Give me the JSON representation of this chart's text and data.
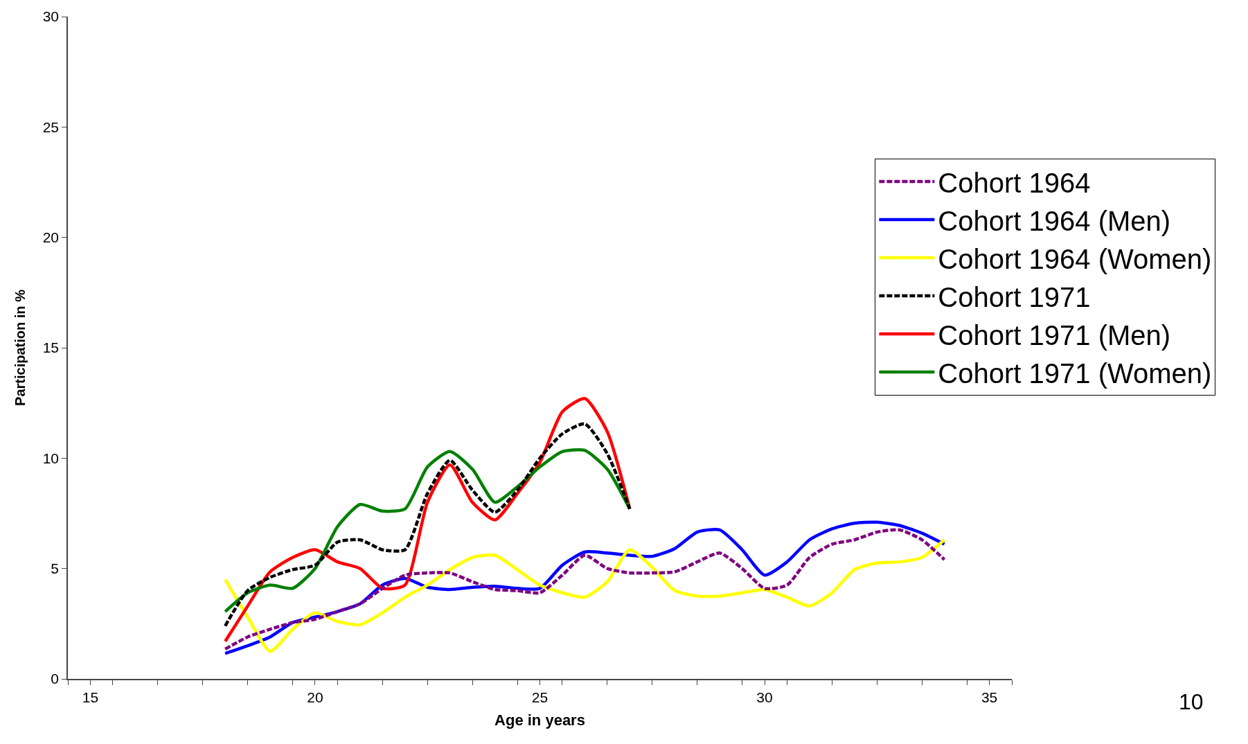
{
  "chart_data": {
    "type": "line",
    "xlabel": "Age in years",
    "ylabel": "Participation in %",
    "x": [
      18,
      18.5,
      19,
      19.5,
      20,
      20.5,
      21,
      21.5,
      22,
      22.5,
      23,
      23.5,
      24,
      24.5,
      25,
      25.5,
      26,
      26.5,
      27,
      27.5,
      28,
      28.5,
      29,
      29.5,
      30,
      30.5,
      31,
      31.5,
      32,
      32.5,
      33,
      33.5,
      34
    ],
    "series": [
      {
        "name": "Cohort 1964",
        "color": "#800080",
        "line_style": "dashed",
        "values": [
          1.35,
          1.9,
          2.25,
          2.55,
          2.7,
          3.05,
          3.4,
          4.1,
          4.7,
          4.8,
          4.8,
          4.4,
          4.05,
          4.0,
          3.9,
          4.7,
          5.6,
          5.0,
          4.8,
          4.8,
          4.85,
          5.3,
          5.7,
          5.0,
          4.1,
          4.25,
          5.5,
          6.1,
          6.3,
          6.65,
          6.75,
          6.3,
          5.4
        ]
      },
      {
        "name": "Cohort 1964 (Men)",
        "color": "#0000ff",
        "line_style": "solid",
        "values": [
          1.15,
          1.5,
          1.9,
          2.55,
          2.8,
          3.05,
          3.4,
          4.25,
          4.55,
          4.15,
          4.05,
          4.15,
          4.2,
          4.1,
          4.1,
          5.15,
          5.75,
          5.7,
          5.6,
          5.55,
          5.9,
          6.65,
          6.75,
          5.85,
          4.7,
          5.3,
          6.3,
          6.8,
          7.05,
          7.1,
          6.95,
          6.6,
          6.1
        ]
      },
      {
        "name": "Cohort 1964 (Women)",
        "color": "#ffff00",
        "line_style": "solid",
        "values": [
          4.5,
          2.8,
          1.25,
          2.25,
          3.0,
          2.6,
          2.45,
          3.0,
          3.7,
          4.25,
          4.95,
          5.5,
          5.6,
          4.95,
          4.25,
          3.9,
          3.7,
          4.4,
          5.85,
          5.05,
          4.0,
          3.75,
          3.75,
          3.9,
          4.05,
          3.7,
          3.3,
          3.9,
          4.95,
          5.25,
          5.3,
          5.5,
          6.3
        ]
      },
      {
        "name": "Cohort 1971",
        "color": "#000000",
        "line_style": "dashed",
        "values": [
          2.4,
          4.0,
          4.6,
          4.95,
          5.15,
          6.2,
          6.3,
          5.85,
          5.85,
          8.4,
          9.9,
          8.55,
          7.55,
          8.55,
          10.0,
          11.1,
          11.55,
          10.2,
          7.7,
          null,
          null,
          null,
          null,
          null,
          null,
          null,
          null,
          null,
          null,
          null,
          null,
          null,
          null
        ]
      },
      {
        "name": "Cohort 1971 (Men)",
        "color": "#ff0000",
        "line_style": "solid",
        "values": [
          1.7,
          3.3,
          4.85,
          5.5,
          5.85,
          5.3,
          5.0,
          4.1,
          4.25,
          8.0,
          9.7,
          8.0,
          7.2,
          8.4,
          9.8,
          12.1,
          12.7,
          11.2,
          7.7,
          null,
          null,
          null,
          null,
          null,
          null,
          null,
          null,
          null,
          null,
          null,
          null,
          null,
          null
        ]
      },
      {
        "name": "Cohort 1971 (Women)",
        "color": "#008000",
        "line_style": "solid",
        "values": [
          3.05,
          3.9,
          4.25,
          4.1,
          5.0,
          6.9,
          7.9,
          7.6,
          7.7,
          9.6,
          10.3,
          9.5,
          8.0,
          8.7,
          9.6,
          10.3,
          10.35,
          9.5,
          7.7,
          null,
          null,
          null,
          null,
          null,
          null,
          null,
          null,
          null,
          null,
          null,
          null,
          null,
          null
        ]
      }
    ],
    "xlim": [
      14.5,
      35.5
    ],
    "xticks": [
      15,
      20,
      25,
      30,
      35,
      {
        "value": 14.5,
        "label": null
      },
      {
        "value": 15.5,
        "label": null
      },
      {
        "value": 16.5,
        "label": null
      },
      {
        "value": 17.5,
        "label": null
      },
      {
        "value": 18.5,
        "label": null
      },
      {
        "value": 19.5,
        "label": null
      },
      {
        "value": 20.5,
        "label": null
      },
      {
        "value": 21.5,
        "label": null
      },
      {
        "value": 22.5,
        "label": null
      },
      {
        "value": 23.5,
        "label": null
      },
      {
        "value": 24.5,
        "label": null
      },
      {
        "value": 25.5,
        "label": null
      },
      {
        "value": 26.5,
        "label": null
      },
      {
        "value": 27.5,
        "label": null
      },
      {
        "value": 28.5,
        "label": null
      },
      {
        "value": 29.5,
        "label": null
      },
      {
        "value": 30.5,
        "label": null
      },
      {
        "value": 31.5,
        "label": null
      },
      {
        "value": 32.5,
        "label": null
      },
      {
        "value": 33.5,
        "label": null
      },
      {
        "value": 34.5,
        "label": null
      },
      {
        "value": 35.5,
        "label": null
      }
    ],
    "ylim": [
      0,
      30
    ],
    "yticks": [
      0,
      5,
      10,
      15,
      20,
      25,
      30
    ],
    "legend": "right",
    "marker": "none",
    "annotations": [
      "10"
    ]
  }
}
